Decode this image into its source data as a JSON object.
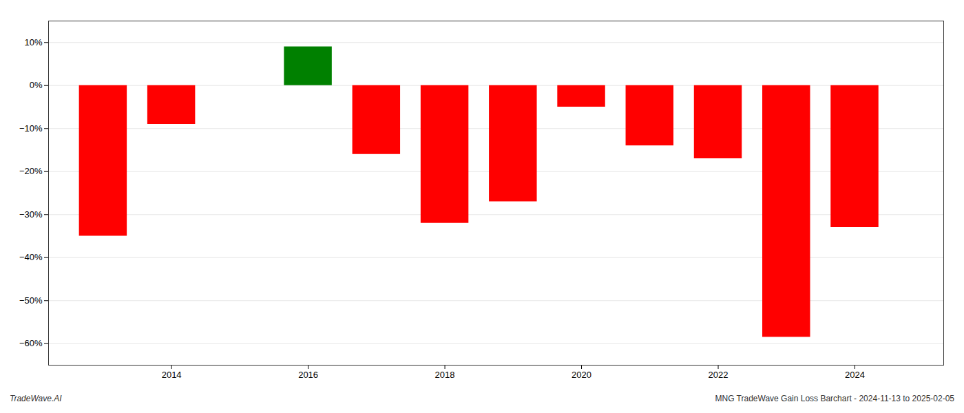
{
  "chart_data": {
    "type": "bar",
    "x": [
      2013,
      2014,
      2016,
      2017,
      2018,
      2019,
      2020,
      2021,
      2022,
      2023,
      2024
    ],
    "values": [
      -35.0,
      -9.0,
      9.0,
      -16.0,
      -32.0,
      -27.0,
      -5.0,
      -14.0,
      -17.0,
      -58.5,
      -33.0
    ],
    "colors": [
      "#ff0000",
      "#ff0000",
      "#008000",
      "#ff0000",
      "#ff0000",
      "#ff0000",
      "#ff0000",
      "#ff0000",
      "#ff0000",
      "#ff0000",
      "#ff0000"
    ],
    "xlim": [
      2012.2,
      2025.3
    ],
    "xticks": [
      2014,
      2016,
      2018,
      2020,
      2022,
      2024
    ],
    "ylim": [
      -65,
      15
    ],
    "yticks": [
      {
        "value": 10,
        "label": "10%"
      },
      {
        "value": 0,
        "label": "0%"
      },
      {
        "value": -10,
        "label": "−10%"
      },
      {
        "value": -20,
        "label": "−20%"
      },
      {
        "value": -30,
        "label": "−30%"
      },
      {
        "value": -40,
        "label": "−40%"
      },
      {
        "value": -50,
        "label": "−50%"
      },
      {
        "value": -60,
        "label": "−60%"
      }
    ],
    "grid": true,
    "annotations": [
      "TradeWave.AI",
      "MNG TradeWave Gain Loss Barchart - 2024-11-13 to 2025-02-05"
    ]
  }
}
